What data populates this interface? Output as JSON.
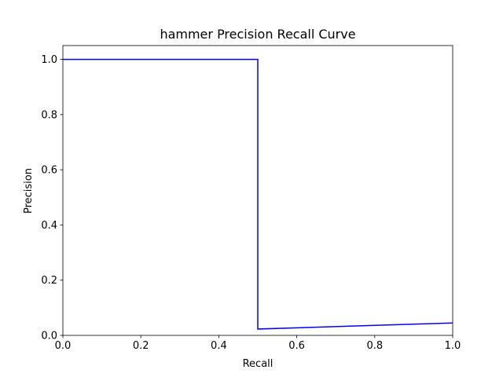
{
  "chart_data": {
    "type": "line",
    "title": "hammer Precision Recall Curve",
    "xlabel": "Recall",
    "ylabel": "Precision",
    "xlim": [
      0.0,
      1.0
    ],
    "ylim": [
      0.0,
      1.05
    ],
    "x_ticks": [
      0.0,
      0.2,
      0.4,
      0.6,
      0.8,
      1.0
    ],
    "y_ticks": [
      0.0,
      0.2,
      0.4,
      0.6,
      0.8,
      1.0
    ],
    "x_tick_labels": [
      "0.0",
      "0.2",
      "0.4",
      "0.6",
      "0.8",
      "1.0"
    ],
    "y_tick_labels": [
      "0.0",
      "0.2",
      "0.4",
      "0.6",
      "0.8",
      "1.0"
    ],
    "grid": false,
    "series": [
      {
        "color": "#0000ff",
        "x": [
          0.0,
          0.5,
          0.5,
          1.0
        ],
        "y": [
          1.0,
          1.0,
          0.023,
          0.045
        ]
      }
    ]
  }
}
